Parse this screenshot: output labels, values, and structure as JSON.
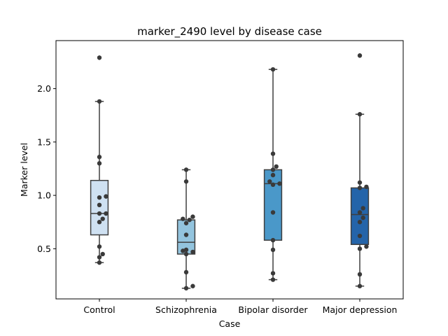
{
  "chart_data": {
    "type": "box",
    "title": "marker_2490 level by disease case",
    "xlabel": "Case",
    "ylabel": "Marker level",
    "categories": [
      "Control",
      "Schizophrenia",
      "Bipolar disorder",
      "Major depression"
    ],
    "ylim": [
      0.03,
      2.45
    ],
    "yticks": [
      0.5,
      1.0,
      1.5,
      2.0
    ],
    "ytick_labels": [
      "0.5",
      "1.0",
      "1.5",
      "2.0"
    ],
    "grid": false,
    "legend": "none",
    "colors": {
      "boxes": [
        "#cfe1f2",
        "#93c4de",
        "#4a98c9",
        "#2464a9"
      ],
      "lines": "#3f3f3f",
      "points": "#3a3a3a"
    },
    "boxes": [
      {
        "whisker_low": 0.37,
        "q1": 0.63,
        "median": 0.83,
        "q3": 1.14,
        "whisker_high": 1.88,
        "outliers": [
          2.29
        ]
      },
      {
        "whisker_low": 0.13,
        "q1": 0.45,
        "median": 0.56,
        "q3": 0.77,
        "whisker_high": 1.24,
        "outliers": []
      },
      {
        "whisker_low": 0.21,
        "q1": 0.58,
        "median": 1.11,
        "q3": 1.24,
        "whisker_high": 2.18,
        "outliers": []
      },
      {
        "whisker_low": 0.15,
        "q1": 0.54,
        "median": 0.82,
        "q3": 1.07,
        "whisker_high": 1.76,
        "outliers": [
          2.31
        ]
      }
    ],
    "points": [
      [
        2.29,
        1.88,
        1.36,
        1.3,
        0.99,
        0.98,
        0.91,
        0.83,
        0.83,
        0.78,
        0.75,
        0.52,
        0.45,
        0.42,
        0.37
      ],
      [
        1.24,
        1.13,
        0.8,
        0.78,
        0.77,
        0.74,
        0.63,
        0.49,
        0.48,
        0.47,
        0.45,
        0.28,
        0.15,
        0.13
      ],
      [
        2.18,
        1.39,
        1.27,
        1.24,
        1.19,
        1.13,
        1.11,
        1.1,
        0.84,
        0.58,
        0.49,
        0.27,
        0.21
      ],
      [
        2.31,
        1.76,
        1.12,
        1.08,
        1.07,
        0.88,
        0.84,
        0.79,
        0.75,
        0.62,
        0.52,
        0.5,
        0.26,
        0.15
      ]
    ]
  }
}
